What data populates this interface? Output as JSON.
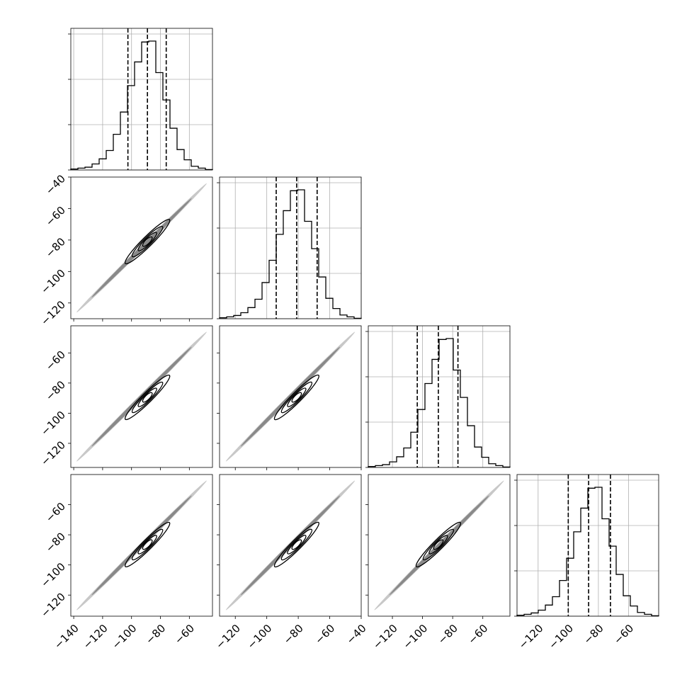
{
  "chart_data": {
    "type": "corner",
    "parameters": 4,
    "hist_bins": 20,
    "quantiles": [
      0.16,
      0.5,
      0.84
    ],
    "axes": [
      {
        "range": [
          -142,
          -44
        ],
        "ticks": [
          -140,
          -120,
          -100,
          -80,
          -60
        ]
      },
      {
        "range": [
          -130,
          -40
        ],
        "ticks": [
          -120,
          -100,
          -80,
          -60,
          -40
        ]
      },
      {
        "range": [
          -136,
          -42
        ],
        "ticks": [
          -120,
          -100,
          -80,
          -60
        ]
      },
      {
        "range": [
          -134,
          -40
        ],
        "ticks": [
          -120,
          -100,
          -80,
          -60
        ]
      }
    ],
    "diag_ticks": [
      {
        "ticks": [
          -140,
          -120,
          -100,
          -80,
          -60
        ]
      },
      {
        "ticks": [
          -120,
          -100,
          -80,
          -60,
          -40
        ]
      },
      {
        "ticks": [
          -120,
          -100,
          -80,
          -60
        ]
      },
      {
        "ticks": [
          -120,
          -100,
          -80,
          -60
        ]
      }
    ],
    "tick_labels": {
      "x": [
        [
          "−140",
          "−120",
          "−100",
          "−80",
          "−60"
        ],
        [
          "−120",
          "−100",
          "−80",
          "−60",
          "−40"
        ],
        [
          "−120",
          "−100",
          "−80",
          "−60"
        ],
        [
          "−120",
          "−100",
          "−80",
          "−60"
        ]
      ],
      "y": [
        [],
        [
          "−40",
          "−60",
          "−80",
          "−100",
          "−120"
        ],
        [
          "−60",
          "−80",
          "−100",
          "−120"
        ],
        [
          "−60",
          "−80",
          "−100",
          "−120"
        ]
      ]
    },
    "marginals": [
      {
        "bins": [
          -142,
          -137.1,
          -132.2,
          -127.3,
          -122.4,
          -117.5,
          -112.6,
          -107.7,
          -102.8,
          -97.9,
          -93,
          -88.1,
          -83.2,
          -78.3,
          -73.4,
          -68.5,
          -63.6,
          -58.7,
          -53.8,
          -48.9,
          -44
        ],
        "counts": [
          2,
          4,
          6,
          13,
          24,
          42,
          77,
          125,
          182,
          233,
          276,
          278,
          210,
          151,
          90,
          44,
          22,
          8,
          4,
          1
        ],
        "q": [
          -102.5,
          -89.0,
          -76.0
        ]
      },
      {
        "bins": [
          -130,
          -125.5,
          -121,
          -116.5,
          -112,
          -107.5,
          -103,
          -98.5,
          -94,
          -89.5,
          -85,
          -80.5,
          -76,
          -71.5,
          -67,
          -62.5,
          -58,
          -53.5,
          -49,
          -44.5,
          -40
        ],
        "counts": [
          2,
          4,
          7,
          13,
          24,
          42,
          78,
          126,
          182,
          233,
          276,
          278,
          210,
          151,
          90,
          44,
          22,
          8,
          4,
          1
        ],
        "q": [
          -94.0,
          -81.0,
          -68.0
        ]
      },
      {
        "bins": [
          -136,
          -131.3,
          -126.6,
          -121.9,
          -117.2,
          -112.5,
          -107.8,
          -103.1,
          -98.4,
          -93.7,
          -89,
          -84.3,
          -79.6,
          -74.9,
          -70.2,
          -65.5,
          -60.8,
          -56.1,
          -51.4,
          -46.7,
          -42
        ],
        "counts": [
          2,
          4,
          6,
          12,
          23,
          42,
          76,
          125,
          181,
          233,
          276,
          278,
          210,
          151,
          90,
          44,
          22,
          8,
          4,
          1
        ],
        "q": [
          -103.5,
          -89.5,
          -76.5
        ]
      },
      {
        "bins": [
          -134,
          -129.3,
          -124.6,
          -119.9,
          -115.2,
          -110.5,
          -105.8,
          -101.1,
          -96.4,
          -91.7,
          -87,
          -82.3,
          -77.6,
          -72.9,
          -68.2,
          -63.5,
          -58.8,
          -54.1,
          -49.4,
          -44.7,
          -40
        ],
        "counts": [
          2,
          4,
          7,
          13,
          24,
          42,
          77,
          125,
          182,
          233,
          276,
          278,
          210,
          151,
          90,
          44,
          22,
          8,
          4,
          1
        ],
        "q": [
          -100.0,
          -86.5,
          -72.0
        ]
      }
    ]
  }
}
